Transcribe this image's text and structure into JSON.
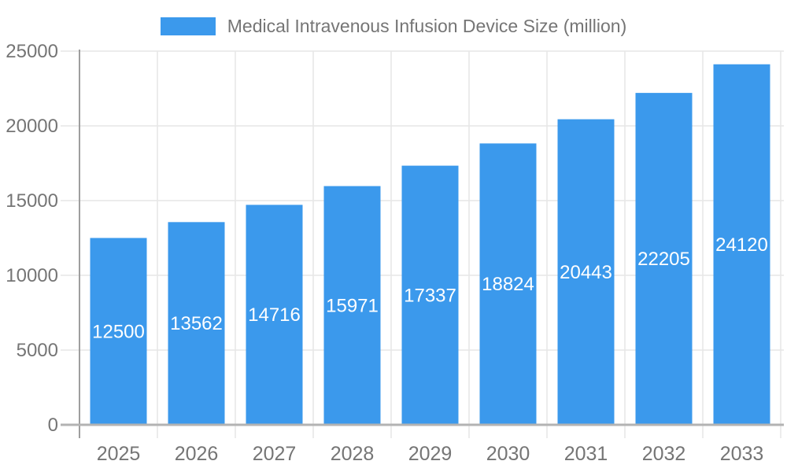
{
  "chart_data": {
    "type": "bar",
    "title": "Medical Intravenous Infusion Device Size (million)",
    "categories": [
      "2025",
      "2026",
      "2027",
      "2028",
      "2029",
      "2030",
      "2031",
      "2032",
      "2033"
    ],
    "values": [
      12500,
      13562,
      14716,
      15971,
      17337,
      18824,
      20443,
      22205,
      24120
    ],
    "xlabel": "",
    "ylabel": "",
    "ylim": [
      0,
      25000
    ],
    "yticks": [
      0,
      5000,
      10000,
      15000,
      20000,
      25000
    ],
    "grid": true,
    "legend_position": "top",
    "colors": {
      "bar": "#3b99ec",
      "bar_label": "#ffffff",
      "grid": "#e6e6e6",
      "y_axis": "#9e9e9e",
      "x_axis": "#b3b3b3",
      "text": "#757575",
      "background": "#ffffff"
    }
  }
}
